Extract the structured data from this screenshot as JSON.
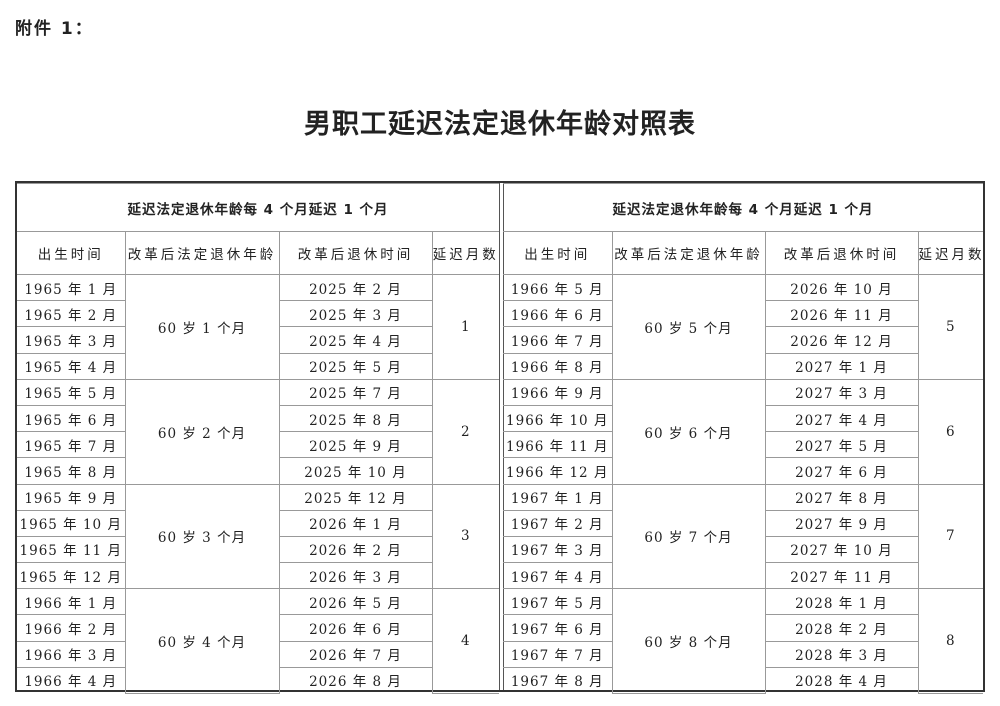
{
  "attachment_label": "附件 1：",
  "title": "男职工延迟法定退休年龄对照表",
  "tables": [
    {
      "header": "延迟法定退休年龄每 4 个月延迟 1 个月",
      "columns": [
        "出生时间",
        "改革后法定退休年龄",
        "改革后退休时间",
        "延迟月数"
      ],
      "groups": [
        {
          "age": "60 岁 1 个月",
          "months": "1",
          "rows": [
            [
              "1965 年 1 月",
              "2025 年 2 月"
            ],
            [
              "1965 年 2 月",
              "2025 年 3 月"
            ],
            [
              "1965 年 3 月",
              "2025 年 4 月"
            ],
            [
              "1965 年 4 月",
              "2025 年 5 月"
            ]
          ]
        },
        {
          "age": "60 岁 2 个月",
          "months": "2",
          "rows": [
            [
              "1965 年 5 月",
              "2025 年 7 月"
            ],
            [
              "1965 年 6 月",
              "2025 年 8 月"
            ],
            [
              "1965 年 7 月",
              "2025 年 9 月"
            ],
            [
              "1965 年 8 月",
              "2025 年 10 月"
            ]
          ]
        },
        {
          "age": "60 岁 3 个月",
          "months": "3",
          "rows": [
            [
              "1965 年 9 月",
              "2025 年 12 月"
            ],
            [
              "1965 年 10 月",
              "2026 年 1 月"
            ],
            [
              "1965 年 11 月",
              "2026 年 2 月"
            ],
            [
              "1965 年 12 月",
              "2026 年 3 月"
            ]
          ]
        },
        {
          "age": "60 岁 4 个月",
          "months": "4",
          "rows": [
            [
              "1966 年 1 月",
              "2026 年 5 月"
            ],
            [
              "1966 年 2 月",
              "2026 年 6 月"
            ],
            [
              "1966 年 3 月",
              "2026 年 7 月"
            ],
            [
              "1966 年 4 月",
              "2026 年 8 月"
            ]
          ]
        }
      ]
    },
    {
      "header": "延迟法定退休年龄每 4 个月延迟 1 个月",
      "columns": [
        "出生时间",
        "改革后法定退休年龄",
        "改革后退休时间",
        "延迟月数"
      ],
      "groups": [
        {
          "age": "60 岁 5 个月",
          "months": "5",
          "rows": [
            [
              "1966 年 5 月",
              "2026 年 10 月"
            ],
            [
              "1966 年 6 月",
              "2026 年 11 月"
            ],
            [
              "1966 年 7 月",
              "2026 年 12 月"
            ],
            [
              "1966 年 8 月",
              "2027 年 1 月"
            ]
          ]
        },
        {
          "age": "60 岁 6 个月",
          "months": "6",
          "rows": [
            [
              "1966 年 9 月",
              "2027 年 3 月"
            ],
            [
              "1966 年 10 月",
              "2027 年 4 月"
            ],
            [
              "1966 年 11 月",
              "2027 年 5 月"
            ],
            [
              "1966 年 12 月",
              "2027 年 6 月"
            ]
          ]
        },
        {
          "age": "60 岁 7 个月",
          "months": "7",
          "rows": [
            [
              "1967 年 1 月",
              "2027 年 8 月"
            ],
            [
              "1967 年 2 月",
              "2027 年 9 月"
            ],
            [
              "1967 年 3 月",
              "2027 年 10 月"
            ],
            [
              "1967 年 4 月",
              "2027 年 11 月"
            ]
          ]
        },
        {
          "age": "60 岁 8 个月",
          "months": "8",
          "rows": [
            [
              "1967 年 5 月",
              "2028 年 1 月"
            ],
            [
              "1967 年 6 月",
              "2028 年 2 月"
            ],
            [
              "1967 年 7 月",
              "2028 年 3 月"
            ],
            [
              "1967 年 8 月",
              "2028 年 4 月"
            ]
          ]
        }
      ]
    }
  ]
}
